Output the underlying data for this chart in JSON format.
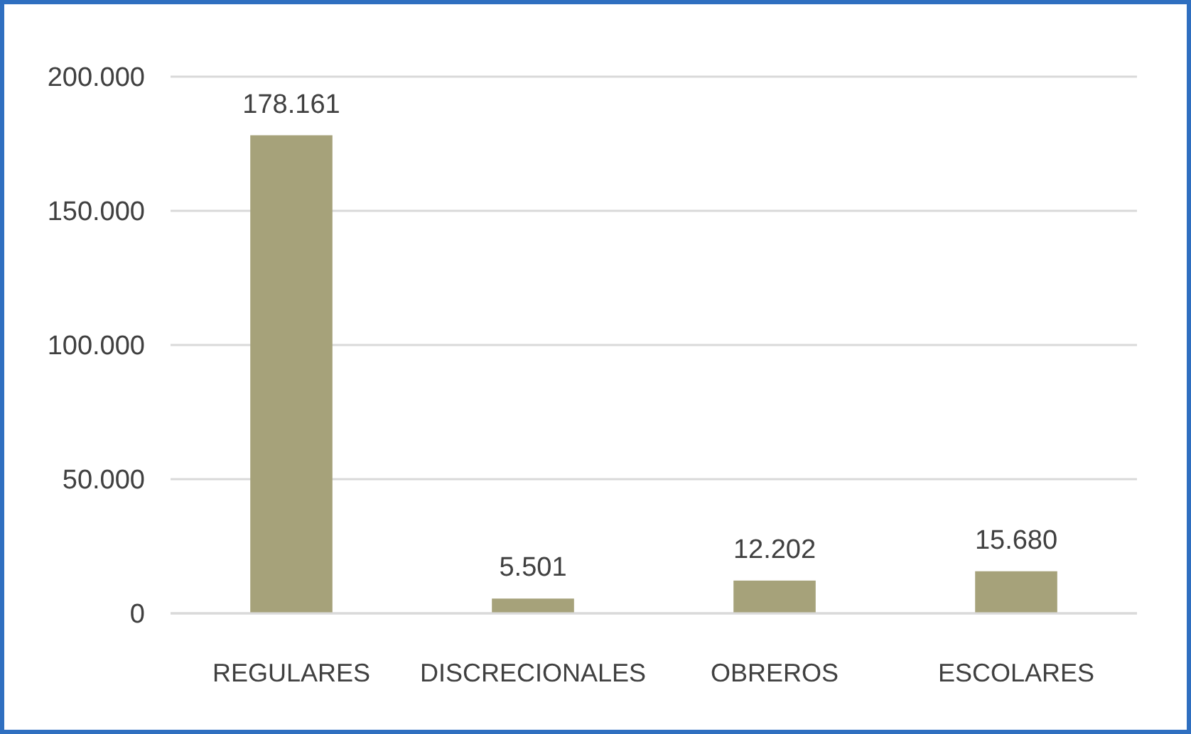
{
  "chart_data": {
    "type": "bar",
    "categories": [
      "REGULARES",
      "DISCRECIONALES",
      "OBREROS",
      "ESCOLARES"
    ],
    "values": [
      178161,
      5501,
      12202,
      15680
    ],
    "value_labels": [
      "178.161",
      "5.501",
      "12.202",
      "15.680"
    ],
    "color": "#a6a27a",
    "ylim": [
      0,
      200000
    ],
    "yticks": [
      {
        "value": 0,
        "label": "0"
      },
      {
        "value": 50000,
        "label": "50.000"
      },
      {
        "value": 100000,
        "label": "100.000"
      },
      {
        "value": 150000,
        "label": "150.000"
      },
      {
        "value": 200000,
        "label": "200.000"
      }
    ],
    "grid": "y"
  }
}
